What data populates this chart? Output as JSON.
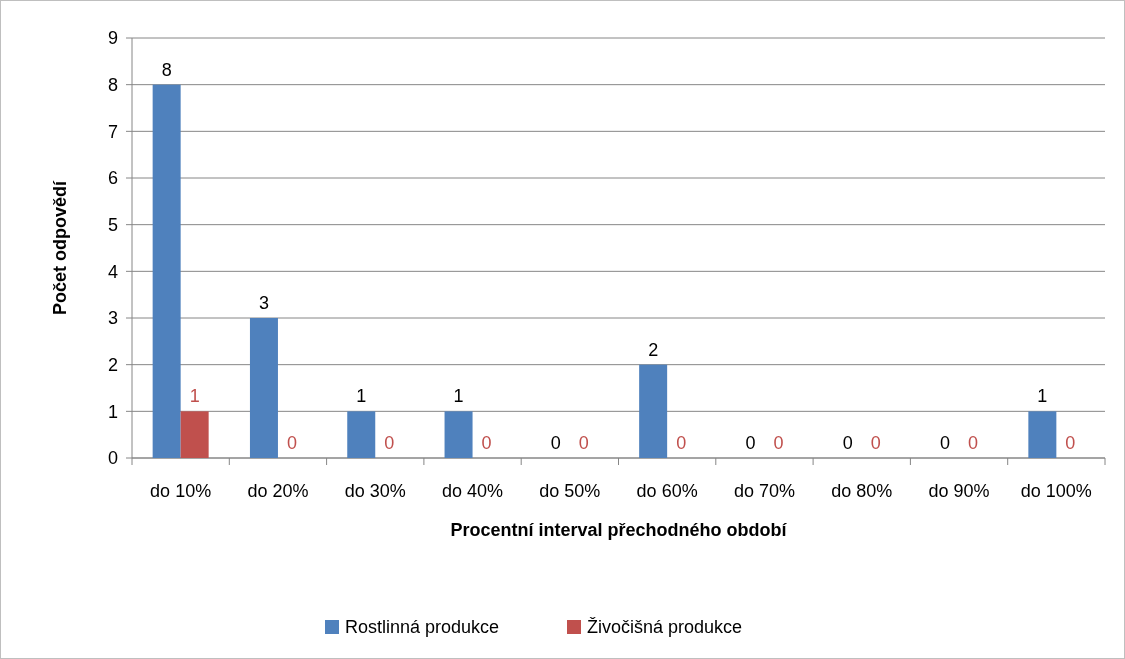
{
  "chart_data": {
    "type": "bar",
    "xlabel": "Procentní interval přechodného období",
    "ylabel": "Počet odpovědí",
    "categories": [
      "do 10%",
      "do 20%",
      "do 30%",
      "do 40%",
      "do 50%",
      "do 60%",
      "do 70%",
      "do 80%",
      "do 90%",
      "do 100%"
    ],
    "series": [
      {
        "name": "Rostlinná produkce",
        "color": "#4f81bd",
        "values": [
          8,
          3,
          1,
          1,
          0,
          2,
          0,
          0,
          0,
          1
        ]
      },
      {
        "name": "Živočišná produkce",
        "color": "#c0504d",
        "values": [
          1,
          0,
          0,
          0,
          0,
          0,
          0,
          0,
          0,
          0
        ]
      }
    ],
    "ylim": [
      0,
      9
    ],
    "yticks": [
      0,
      1,
      2,
      3,
      4,
      5,
      6,
      7,
      8,
      9
    ],
    "grid": "y",
    "legend": "bottom",
    "data_labels": true
  }
}
